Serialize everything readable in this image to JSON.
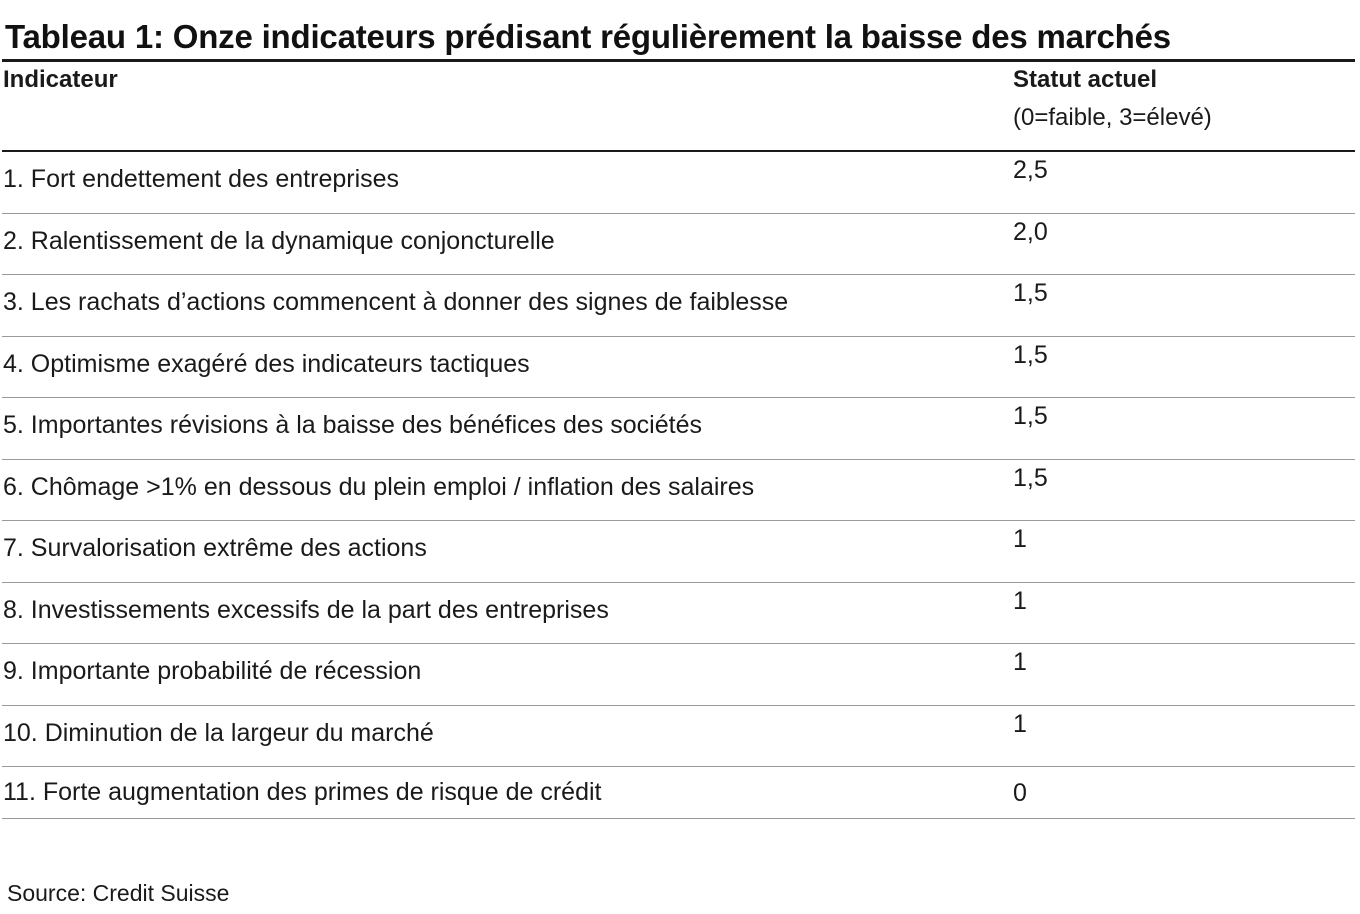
{
  "title": "Tableau 1: Onze indicateurs prédisant régulièrement la baisse des marchés",
  "header": {
    "col1": "Indicateur",
    "col2": "Statut actuel",
    "col2_sub": "(0=faible, 3=élevé)"
  },
  "rows": [
    {
      "indicator": "1. Fort endettement des entreprises",
      "status": "2,5"
    },
    {
      "indicator": "2. Ralentissement de la dynamique conjoncturelle",
      "status": "2,0"
    },
    {
      "indicator": "3. Les rachats d’actions commencent à donner des signes de faiblesse",
      "status": "1,5"
    },
    {
      "indicator": "4. Optimisme exagéré des indicateurs tactiques",
      "status": "1,5"
    },
    {
      "indicator": "5. Importantes révisions à la baisse des bénéfices des sociétés",
      "status": "1,5"
    },
    {
      "indicator": "6. Chômage >1% en dessous du plein emploi / inflation des salaires",
      "status": "1,5"
    },
    {
      "indicator": "7. Survalorisation extrême des actions",
      "status": "1"
    },
    {
      "indicator": "8. Investissements excessifs de la part des entreprises",
      "status": "1"
    },
    {
      "indicator": "9. Importante probabilité de récession",
      "status": "1"
    },
    {
      "indicator": "10. Diminution de la largeur du marché",
      "status": "1"
    },
    {
      "indicator": "11. Forte augmentation des primes de risque de crédit",
      "status": "0"
    }
  ],
  "source": "Source: Credit Suisse"
}
